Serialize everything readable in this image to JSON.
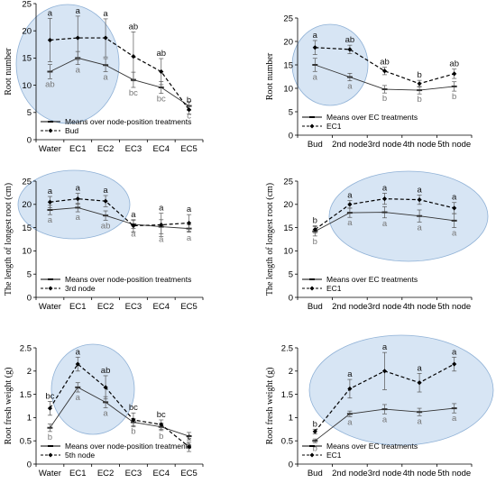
{
  "chart_data": [
    {
      "type": "line",
      "ylabel": "Root number",
      "ylim": [
        0,
        25
      ],
      "yticks": [
        0,
        5,
        10,
        15,
        20,
        25
      ],
      "categories": [
        "Water",
        "EC1",
        "EC2",
        "EC3",
        "EC4",
        "EC5"
      ],
      "highlight": "ellipse",
      "legend_position": "bottom",
      "series": [
        {
          "name": "Means over node-position treatments",
          "style": "solid",
          "values": [
            12.5,
            15,
            13.7,
            11,
            9.6,
            6.2
          ],
          "errors": [
            1.3,
            1.2,
            1.2,
            1.4,
            1.1,
            0.8
          ],
          "labels": [
            "ab",
            "a",
            "a",
            "bc",
            "bc",
            "c"
          ]
        },
        {
          "name": "Bud",
          "style": "dashed",
          "values": [
            18.3,
            18.7,
            18.7,
            15.3,
            12.5,
            5.5
          ],
          "errors": [
            4.0,
            4.0,
            3.5,
            4.5,
            2.4,
            0.8
          ],
          "labels": [
            "a",
            "a",
            "a",
            "ab",
            "ab",
            "b"
          ]
        }
      ]
    },
    {
      "type": "line",
      "ylabel": "Root number",
      "ylim": [
        0,
        25
      ],
      "yticks": [
        0,
        5,
        10,
        15,
        20,
        25
      ],
      "categories": [
        "Bud",
        "2nd node",
        "3rd node",
        "4th node",
        "5th node"
      ],
      "highlight": "ellipse",
      "legend_position": "bottom",
      "series": [
        {
          "name": "Means over EC treatments",
          "style": "solid",
          "values": [
            15,
            12.4,
            9.8,
            9.6,
            10.4
          ],
          "errors": [
            1.4,
            0.8,
            0.8,
            0.8,
            1.0
          ],
          "labels": [
            "a",
            "a",
            "b",
            "b",
            "b"
          ]
        },
        {
          "name": "EC1",
          "style": "dashed",
          "values": [
            18.7,
            18.3,
            13.7,
            11,
            13.1
          ],
          "errors": [
            1.5,
            0.9,
            0.8,
            0.7,
            1.0
          ],
          "labels": [
            "a",
            "ab",
            "ab",
            "b",
            "ab"
          ]
        }
      ]
    },
    {
      "type": "line",
      "ylabel": "The length of longest root (cm)",
      "ylim": [
        0,
        25
      ],
      "yticks": [
        0,
        5,
        10,
        15,
        20,
        25
      ],
      "categories": [
        "Water",
        "EC1",
        "EC2",
        "EC3",
        "EC4",
        "EC5"
      ],
      "highlight": "ellipse",
      "legend_position": "bottom",
      "series": [
        {
          "name": "Means over node-position treatments",
          "style": "solid",
          "values": [
            18.8,
            19.3,
            17.6,
            15.7,
            15.2,
            14.8
          ],
          "errors": [
            1.0,
            0.9,
            1.0,
            0.9,
            1.5,
            0.8
          ],
          "labels": [
            "a",
            "a",
            "ab",
            "a",
            "a",
            "a"
          ]
        },
        {
          "name": "3rd node",
          "style": "dashed",
          "values": [
            20.5,
            21.2,
            20.7,
            15.4,
            15.6,
            16
          ],
          "errors": [
            1.2,
            1.2,
            1.2,
            1.3,
            2.5,
            1.8
          ],
          "labels": [
            "a",
            "a",
            "a",
            "a",
            "a",
            "a"
          ]
        }
      ]
    },
    {
      "type": "line",
      "ylabel": "The length of longest root (cm)",
      "ylim": [
        0,
        25
      ],
      "yticks": [
        0,
        5,
        10,
        15,
        20,
        25
      ],
      "categories": [
        "Bud",
        "2nd node",
        "3rd node",
        "4th node",
        "5th node"
      ],
      "highlight": "ellipse",
      "legend_position": "bottom",
      "series": [
        {
          "name": "Means over EC treatments",
          "style": "solid",
          "values": [
            14.2,
            18.2,
            18.3,
            17.5,
            16.5
          ],
          "errors": [
            1.0,
            1.0,
            1.2,
            1.3,
            1.5
          ],
          "labels": [
            "b",
            "a",
            "a",
            "a",
            "a"
          ]
        },
        {
          "name": "EC1",
          "style": "dashed",
          "values": [
            14.6,
            20,
            21.2,
            21,
            19.2
          ],
          "errors": [
            0.8,
            0.8,
            1.2,
            1.0,
            1.2
          ],
          "labels": [
            "b",
            "a",
            "a",
            "a",
            "a"
          ]
        }
      ]
    },
    {
      "type": "line",
      "ylabel": "Root fresh  weight (g)",
      "ylim": [
        0,
        2.5
      ],
      "yticks": [
        0,
        0.5,
        1,
        1.5,
        2,
        2.5
      ],
      "categories": [
        "Water",
        "EC1",
        "EC2",
        "EC3",
        "EC4",
        "EC5"
      ],
      "highlight": "ellipse",
      "legend_position": "bottom",
      "series": [
        {
          "name": "Means over node-position treatments",
          "style": "solid",
          "values": [
            0.78,
            1.65,
            1.33,
            0.9,
            0.8,
            0.6
          ],
          "errors": [
            0.08,
            0.1,
            0.12,
            0.08,
            0.08,
            0.08
          ],
          "labels": [
            "b",
            "a",
            "a",
            "b",
            "b",
            "b"
          ]
        },
        {
          "name": "5th node",
          "style": "dashed",
          "values": [
            1.2,
            2.15,
            1.65,
            0.95,
            0.85,
            0.37
          ],
          "errors": [
            0.15,
            0.15,
            0.25,
            0.15,
            0.1,
            0.1
          ],
          "labels": [
            "bc",
            "a",
            "ab",
            "bc",
            "bc",
            "c"
          ]
        }
      ]
    },
    {
      "type": "line",
      "ylabel": "Root fresh weight (g)",
      "ylim": [
        0,
        2.5
      ],
      "yticks": [
        0,
        0.5,
        1,
        1.5,
        2,
        2.5
      ],
      "categories": [
        "Bud",
        "2nd node",
        "3rd node",
        "4th node",
        "5th node"
      ],
      "highlight": "ellipse",
      "legend_position": "bottom",
      "series": [
        {
          "name": "Means over EC treatments",
          "style": "solid",
          "values": [
            0.5,
            1.08,
            1.18,
            1.12,
            1.2
          ],
          "errors": [
            0.04,
            0.06,
            0.1,
            0.08,
            0.1
          ],
          "labels": [
            "b",
            "a",
            "a",
            "a",
            "a"
          ]
        },
        {
          "name": "EC1",
          "style": "dashed",
          "values": [
            0.7,
            1.62,
            2.0,
            1.75,
            2.15
          ],
          "errors": [
            0.05,
            0.2,
            0.4,
            0.2,
            0.15
          ],
          "labels": [
            "b",
            "a",
            "a",
            "a",
            "a"
          ]
        }
      ]
    }
  ]
}
